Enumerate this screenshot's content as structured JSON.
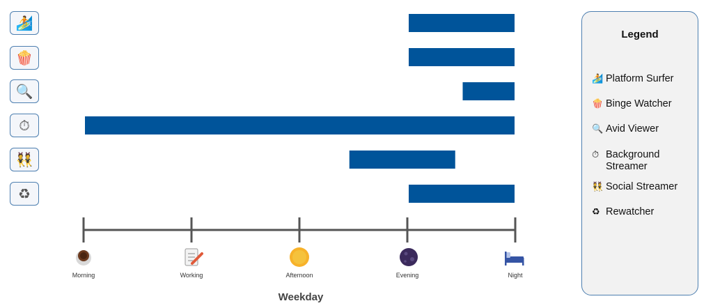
{
  "chart_data": {
    "type": "bar",
    "orientation": "horizontal",
    "xlabel": "Weekday",
    "x_ticks": [
      "Morning",
      "Working",
      "Afternoon",
      "Evening",
      "Night"
    ],
    "x_tick_icons": [
      "coffee-icon",
      "memo-icon",
      "sun-icon",
      "moon-icon",
      "bed-icon"
    ],
    "categories": [
      "Platform Surfer",
      "Binge Watcher",
      "Avid Viewer",
      "Background Streamer",
      "Social Streamer",
      "Rewatcher"
    ],
    "category_icons": [
      "surfer-icon",
      "popcorn-icon",
      "magnifier-icon",
      "stopwatch-icon",
      "people-icon",
      "recycle-icon"
    ],
    "ranges": [
      {
        "start": 3.0,
        "end": 4.0
      },
      {
        "start": 3.0,
        "end": 4.0
      },
      {
        "start": 3.5,
        "end": 4.0
      },
      {
        "start": 0.0,
        "end": 4.0
      },
      {
        "start": 2.45,
        "end": 3.45
      },
      {
        "start": 3.0,
        "end": 4.0
      }
    ],
    "bar_color": "#00549a",
    "legend_position": "right",
    "grid": false
  },
  "legend": {
    "title": "Legend",
    "items": [
      {
        "label": "Platform Surfer",
        "icon": "🏄"
      },
      {
        "label": "Binge Watcher",
        "icon": "🍿"
      },
      {
        "label": "Avid Viewer",
        "icon": "🔍"
      },
      {
        "label": "Background Streamer",
        "icon": "⏱"
      },
      {
        "label": "Social Streamer",
        "icon": "👯"
      },
      {
        "label": "Rewatcher",
        "icon": "♻"
      }
    ]
  },
  "row_icons": [
    "🏄",
    "🍿",
    "🔍",
    "⏱",
    "👯",
    "♻"
  ]
}
